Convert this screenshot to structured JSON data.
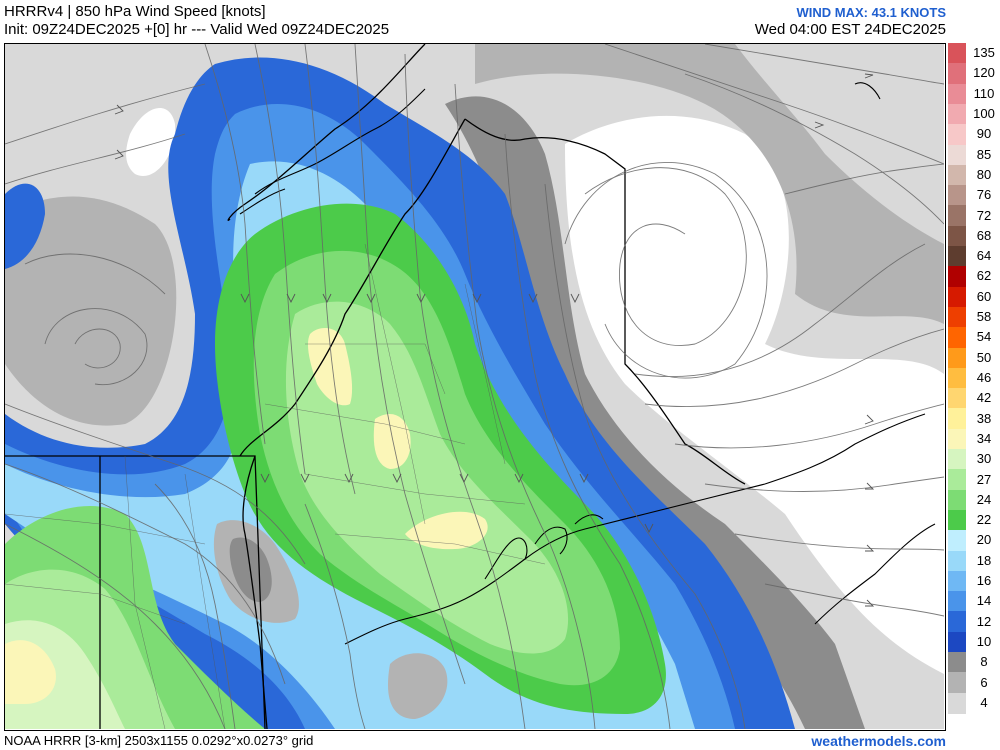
{
  "header": {
    "title": "HRRRv4 | 850 hPa Wind Speed [knots]",
    "init": "Init: 09Z24DEC2025 +[0] hr --- Valid Wed 09Z24DEC2025",
    "wind_max": "WIND MAX: 43.1 KNOTS",
    "valid_local": "Wed 04:00 EST 24DEC2025"
  },
  "footer": {
    "model_info": "NOAA HRRR [3-km] 2503x1155 0.0292°x0.0273° grid",
    "brand": "weathermodels.com"
  },
  "colorbar": {
    "labels": [
      "135",
      "120",
      "110",
      "100",
      "90",
      "85",
      "80",
      "76",
      "72",
      "68",
      "64",
      "62",
      "60",
      "58",
      "54",
      "50",
      "46",
      "42",
      "38",
      "34",
      "30",
      "27",
      "24",
      "22",
      "20",
      "18",
      "16",
      "14",
      "12",
      "10",
      "8",
      "6",
      "4"
    ],
    "colors": [
      "#d9535a",
      "#e0707a",
      "#e98c96",
      "#f1aab0",
      "#f7c8c8",
      "#ecdad6",
      "#d2b7ac",
      "#b8958a",
      "#9a7467",
      "#7d5546",
      "#5e3d2f",
      "#b00000",
      "#d61a00",
      "#ee3f00",
      "#ff6500",
      "#ff9a1a",
      "#ffbd40",
      "#ffd670",
      "#fff19a",
      "#fbf6b8",
      "#d6f5c0",
      "#aaeb9a",
      "#7ddc74",
      "#4ccb4a",
      "#bfeefe",
      "#99d9f9",
      "#6fb8f4",
      "#4a94ea",
      "#2a68d8",
      "#1c48c2",
      "#8c8c8c",
      "#b3b3b3",
      "#d9d9d9"
    ]
  },
  "map": {
    "colors": {
      "gray_dark": "#8c8c8c",
      "gray_mid": "#b3b3b3",
      "gray_light": "#d9d9d9",
      "blue_dark": "#2a68d8",
      "blue_mid": "#4a94ea",
      "blue_light": "#99d9f9",
      "blue_pale": "#bfeefe",
      "green_dark": "#4ccb4a",
      "green_mid": "#7ddc74",
      "green_light": "#aaeb9a",
      "green_pale": "#d6f5c0",
      "yellow": "#fbf6b8"
    }
  }
}
